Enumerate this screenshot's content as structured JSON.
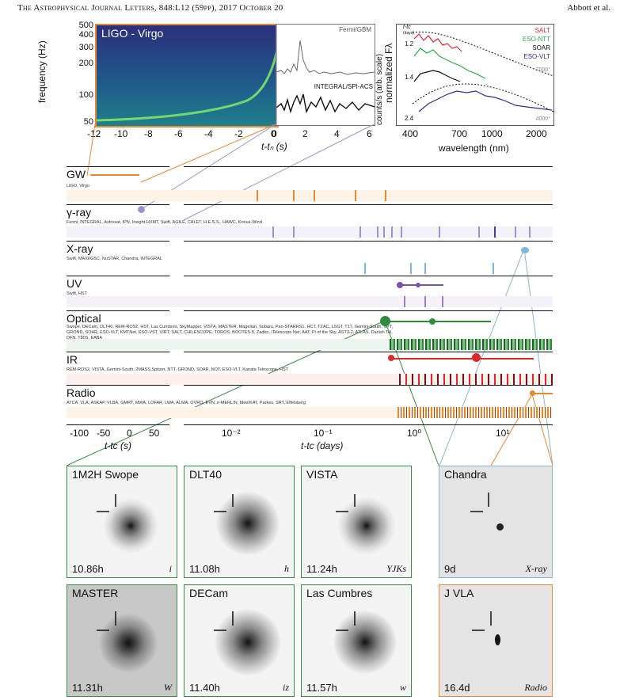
{
  "header": {
    "journal": "The Astrophysical Journal Letters, 848:L12 (59pp), 2017 October 20",
    "authors": "Abbott et al."
  },
  "spectrogram": {
    "title": "LIGO - Virgo",
    "ylabel": "frequency (Hz)",
    "yticks": [
      "500",
      "400",
      "300",
      "200",
      "100",
      "50"
    ],
    "xticks": [
      "-12",
      "-10",
      "-8",
      "-6",
      "-4",
      "-2",
      "0"
    ]
  },
  "gamma_lc": {
    "label1": "Fermi/GBM",
    "label2": "INTEGRAL/SPI-ACS",
    "ylabel": "counts/s (arb. scale)",
    "xticks": [
      "0",
      "2",
      "4",
      "6"
    ],
    "xlabel": "t-tₙ (s)"
  },
  "spectra": {
    "ylabel": "normalized Fλ",
    "xlabel": "wavelength (nm)",
    "xticks": [
      "400",
      "700",
      "1000",
      "2000"
    ],
    "tlabel": "t-tc",
    "tunits": "(days)",
    "epochs": [
      "1.2",
      "1.4",
      "2.4"
    ],
    "legend": [
      {
        "name": "SALT",
        "color": "#d62839"
      },
      {
        "name": "ESO-NTT",
        "color": "#2fa84f"
      },
      {
        "name": "SOAR",
        "color": "#111111"
      },
      {
        "name": "ESO-VLT",
        "color": "#2f2f8f"
      }
    ],
    "bb_labels": [
      "7000°",
      "4000°"
    ]
  },
  "timeline": {
    "bands": [
      {
        "title": "GW",
        "facilities": "LIGO, Virgo",
        "color": "#e8892d"
      },
      {
        "title": "γ-ray",
        "facilities": "Fermi, INTEGRAL, Astrosat, IPN, Insight-HXMT, Swift, AGILE, CALET, H.E.S.S., HAWC, Konus-Wind",
        "color": "#9b93cf"
      },
      {
        "title": "X-ray",
        "facilities": "Swift, MAXI/GSC, NuSTAR, Chandra, INTEGRAL",
        "color": "#7fb6de"
      },
      {
        "title": "UV",
        "facilities": "Swift, HST",
        "color": "#7a52b3"
      },
      {
        "title": "Optical",
        "facilities": "Swope, DECam, DLT40, REM-ROS2, HST, Las Cumbres, SkyMapper, VISTA, MASTER, Magellan, Subaru, Pan-STARRS1, HCT, TZAC, LSGT, T17, Gemini-South, NTT, GROND, SOAR, ESO-VLT, KMTNet, ESO-VST, VIRT, SALT, CHILESCOPE, TOROS, BOOTES-5, Zadko, iTelescope.Net, AAT, Pi of the Sky, AST3-2, ATLAS, Danish Tel, DFN, T80S, EABA",
        "color": "#2e8b3e"
      },
      {
        "title": "IR",
        "facilities": "REM-ROS2, VISTA, Gemini-South, 2MASS,Spitzer, NTT, GROND, SOAR, NOT, ESO-VLT, Kanata Telescope, HST",
        "color": "#d92b2b"
      },
      {
        "title": "Radio",
        "facilities": "ATCA, VLA, ASKAP, VLBA, GMRT, MWA, LOFAR, LWA, ALMA, OVRO, EVN, e-MERLIN, MeerKAT, Parkes, SRT, Effelsberg",
        "color": "#e8892d"
      }
    ],
    "lin_ticks": [
      "-100",
      "-50",
      "0",
      "50"
    ],
    "lin_label": "t-tc (s)",
    "log_ticks": [
      "10⁻²",
      "10⁻¹",
      "10⁰",
      "10¹"
    ],
    "log_label": "t-tc (days)"
  },
  "panels": [
    {
      "title": "1M2H Swope",
      "time": "10.86h",
      "filter": "i",
      "style": "green"
    },
    {
      "title": "DLT40",
      "time": "11.08h",
      "filter": "h",
      "style": "green"
    },
    {
      "title": "VISTA",
      "time": "11.24h",
      "filter": "YJKs",
      "style": "green"
    },
    {
      "title": "Chandra",
      "time": "9d",
      "filter": "X-ray",
      "style": "blue"
    },
    {
      "title": "MASTER",
      "time": "11.31h",
      "filter": "W",
      "style": "green"
    },
    {
      "title": "DECam",
      "time": "11.40h",
      "filter": "iz",
      "style": "green"
    },
    {
      "title": "Las Cumbres",
      "time": "11.57h",
      "filter": "w",
      "style": "green"
    },
    {
      "title": "J VLA",
      "time": "16.4d",
      "filter": "Radio",
      "style": "orange"
    }
  ]
}
